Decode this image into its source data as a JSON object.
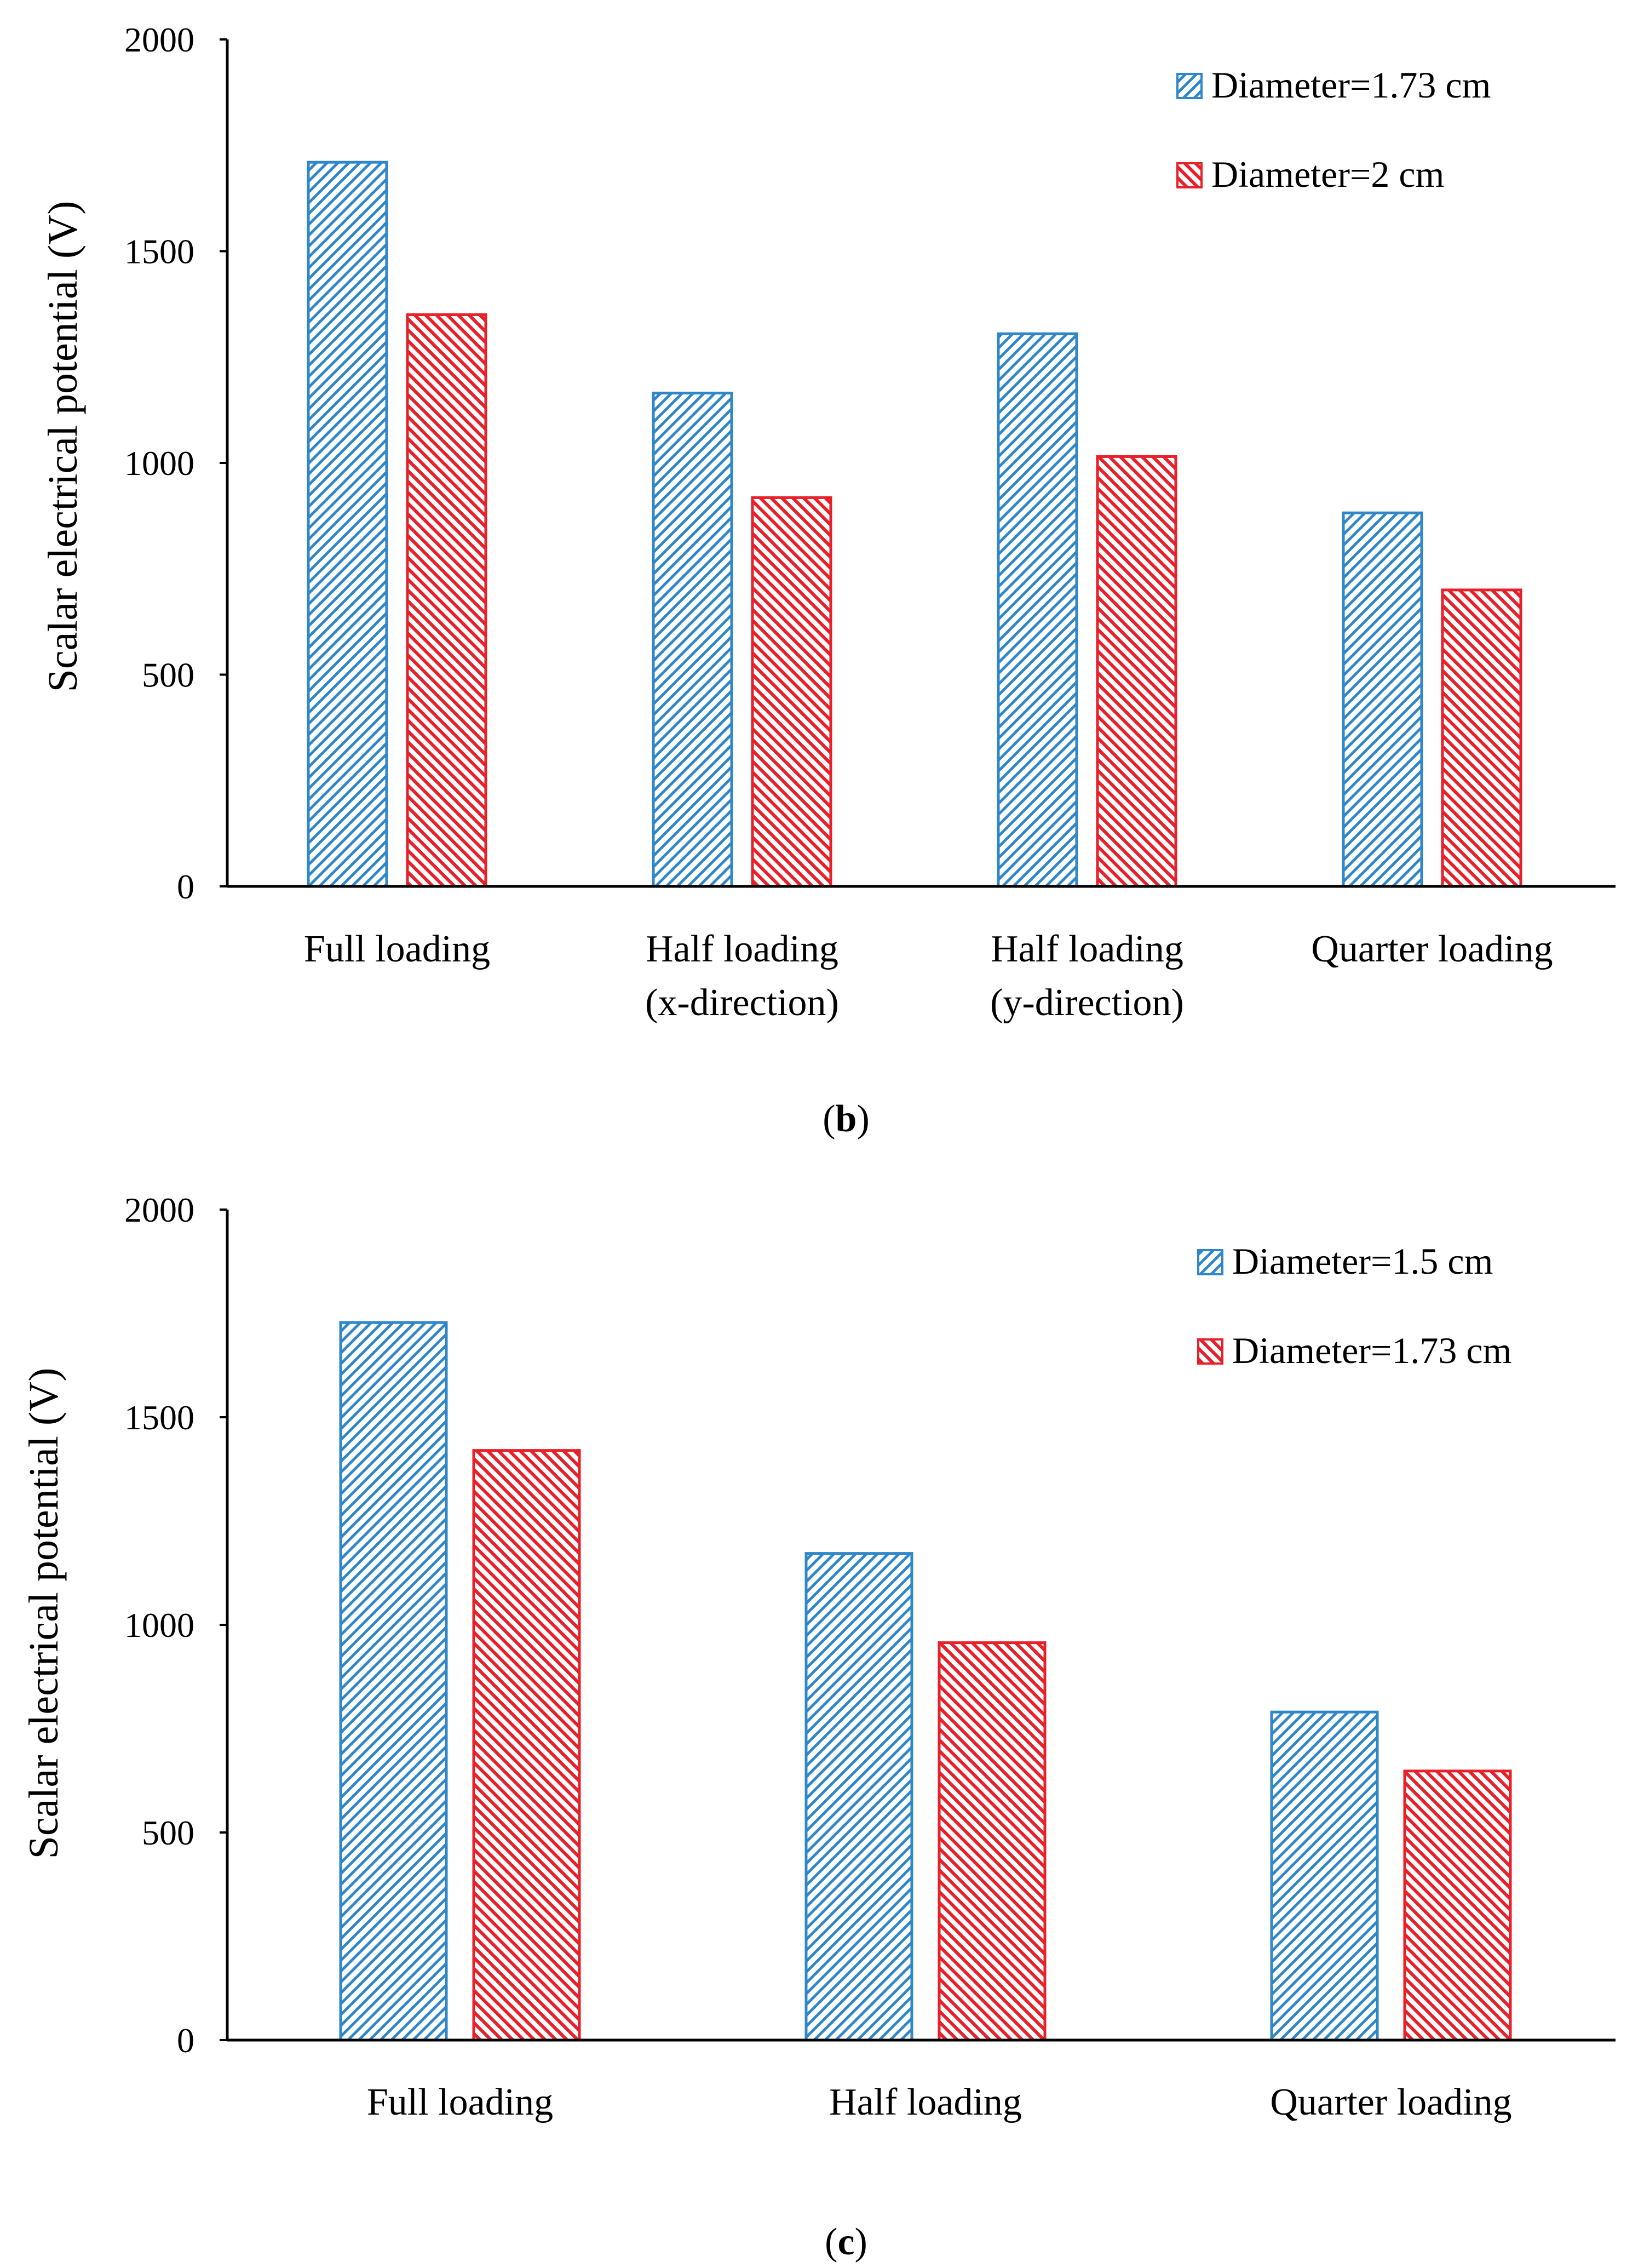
{
  "colors": {
    "series_blue": "#2f86c8",
    "series_red": "#e8202a",
    "axis": "#000000"
  },
  "chart_data": [
    {
      "type": "bar",
      "caption_letter": "b",
      "ylabel": "Scalar electrical potential (V)",
      "ylim": [
        0,
        2000
      ],
      "yticks": [
        0,
        500,
        1000,
        1500,
        2000
      ],
      "categories": [
        [
          "Full loading"
        ],
        [
          "Half loading",
          "(x-direction)"
        ],
        [
          "Half loading",
          "(y-direction)"
        ],
        [
          "Quarter loading"
        ]
      ],
      "series": [
        {
          "name": "Diameter=1.73 cm",
          "pattern": "blue",
          "values": [
            1710,
            1165,
            1305,
            882
          ]
        },
        {
          "name": "Diameter=2 cm",
          "pattern": "red",
          "values": [
            1350,
            918,
            1015,
            700
          ]
        }
      ],
      "legend_position": "top-right",
      "grid": false
    },
    {
      "type": "bar",
      "caption_letter": "c",
      "ylabel": "Scalar electrical potential (V)",
      "ylim": [
        0,
        2000
      ],
      "yticks": [
        0,
        500,
        1000,
        1500,
        2000
      ],
      "categories": [
        [
          "Full loading"
        ],
        [
          "Half loading"
        ],
        [
          "Quarter loading"
        ]
      ],
      "series": [
        {
          "name": "Diameter=1.5 cm",
          "pattern": "blue",
          "values": [
            1728,
            1172,
            790
          ]
        },
        {
          "name": "Diameter=1.73 cm",
          "pattern": "red",
          "values": [
            1420,
            957,
            648
          ]
        }
      ],
      "legend_position": "top-right",
      "grid": false
    }
  ]
}
